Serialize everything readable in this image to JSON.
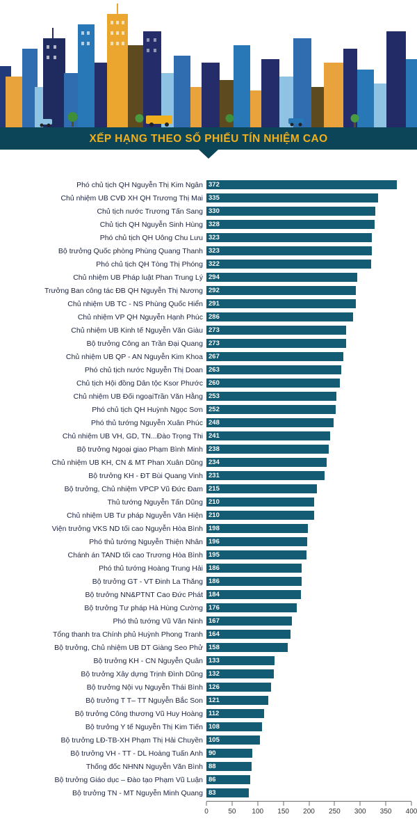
{
  "header": {
    "title": "XẾP HẠNG THEO SỐ PHIẾU TÍN NHIỆM CAO"
  },
  "colors": {
    "bar": "#135c74",
    "banner_bg": "#0b4557",
    "banner_text": "#f0af1d",
    "label_text": "#1c2340",
    "axis_line": "#6b6b6b"
  },
  "chart_data": {
    "type": "bar",
    "orientation": "horizontal",
    "title": "XẾP HẠNG THEO SỐ PHIẾU TÍN NHIỆM CAO",
    "xlabel": "",
    "ylabel": "",
    "xlim": [
      0,
      400
    ],
    "x_ticks": [
      0,
      50,
      100,
      150,
      200,
      250,
      300,
      350,
      400
    ],
    "grid": false,
    "legend": "none",
    "categories": [
      "Phó chủ tịch QH Nguyễn Thị Kim Ngân",
      "Chủ nhiệm UB CVĐ XH QH Trương Thị Mai",
      "Chủ tịch nước Trương Tấn Sang",
      "Chủ tịch QH Nguyễn Sinh Hùng",
      "Phó chủ tịch QH Uông Chu Lưu",
      "Bộ trưởng Quốc phòng Phùng Quang Thanh",
      "Phó chủ tịch QH Tòng Thị Phóng",
      "Chủ nhiệm UB Pháp luật Phan Trung Lý",
      "Trưởng Ban công tác ĐB QH Nguyễn Thị Nương",
      "Chủ nhiệm UB TC - NS Phùng Quốc Hiển",
      "Chủ nhiệm VP QH Nguyễn Hạnh Phúc",
      "Chủ nhiệm UB Kinh tế Nguyễn Văn Giàu",
      "Bộ trưởng Công an Trần Đại Quang",
      "Chủ nhiệm UB QP - AN Nguyễn Kim Khoa",
      "Phó chủ tịch nước Nguyễn Thị Doan",
      "Chủ tịch Hội đồng Dân tộc Ksor Phước",
      "Chủ nhiệm UB Đối ngoạiTrần Văn Hằng",
      "Phó chủ tịch QH Huỳnh Ngọc Sơn",
      "Phó thủ tướng Nguyễn Xuân Phúc",
      "Chủ nhiệm UB VH, GD, TN...Đào Trọng Thi",
      "Bộ trưởng Ngoại giao Phạm Bình Minh",
      "Chủ nhiệm UB KH, CN & MT Phan Xuân Dũng",
      "Bộ trưởng KH - ĐT Bùi Quang Vinh",
      "Bộ trưởng, Chủ nhiệm VPCP Vũ Đức Đam",
      "Thủ tướng Nguyễn Tấn Dũng",
      "Chủ nhiệm UB Tư pháp Nguyễn Văn Hiện",
      "Viện trưởng VKS ND tối cao Nguyễn Hòa Bình",
      "Phó thủ tướng Nguyễn Thiện Nhân",
      "Chánh án TAND tối cao Trương Hòa Bình",
      "Phó thủ tướng Hoàng Trung Hải",
      "Bộ trưởng GT - VT Đinh La Thăng",
      "Bộ trưởng NN&PTNT Cao Đức Phát",
      "Bộ trưởng Tư pháp Hà Hùng Cường",
      "Phó thủ tướng Vũ Văn Ninh",
      "Tổng thanh tra Chính phủ Huỳnh Phong Tranh",
      "Bộ trưởng, Chủ nhiệm UB DT Giàng Seo Phử",
      "Bộ trưởng KH - CN Nguyễn Quân",
      "Bộ trưởng Xây dựng Trịnh Đình Dũng",
      "Bộ trưởng Nội vụ Nguyễn Thái Bình",
      "Bộ trưởng T T– TT Nguyễn Bắc Son",
      "Bộ trưởng Công thương Vũ Huy Hoàng",
      "Bộ trưởng Y tế Nguyễn Thị Kim Tiến",
      "Bộ trưởng LĐ-TB-XH Phạm Thị Hải Chuyền",
      "Bộ trưởng VH - TT - DL Hoàng Tuấn Anh",
      "Thống đốc NHNN Nguyễn Văn Bình",
      "Bộ trưởng Giáo dục – Đào tạo Phạm Vũ Luận",
      "Bộ trưởng TN - MT Nguyễn Minh Quang"
    ],
    "values": [
      372,
      335,
      330,
      328,
      323,
      323,
      322,
      294,
      292,
      291,
      286,
      273,
      273,
      267,
      263,
      260,
      253,
      252,
      248,
      241,
      238,
      234,
      231,
      215,
      210,
      210,
      198,
      196,
      195,
      186,
      186,
      184,
      176,
      167,
      164,
      158,
      133,
      132,
      126,
      121,
      112,
      108,
      105,
      90,
      88,
      86,
      83
    ]
  }
}
